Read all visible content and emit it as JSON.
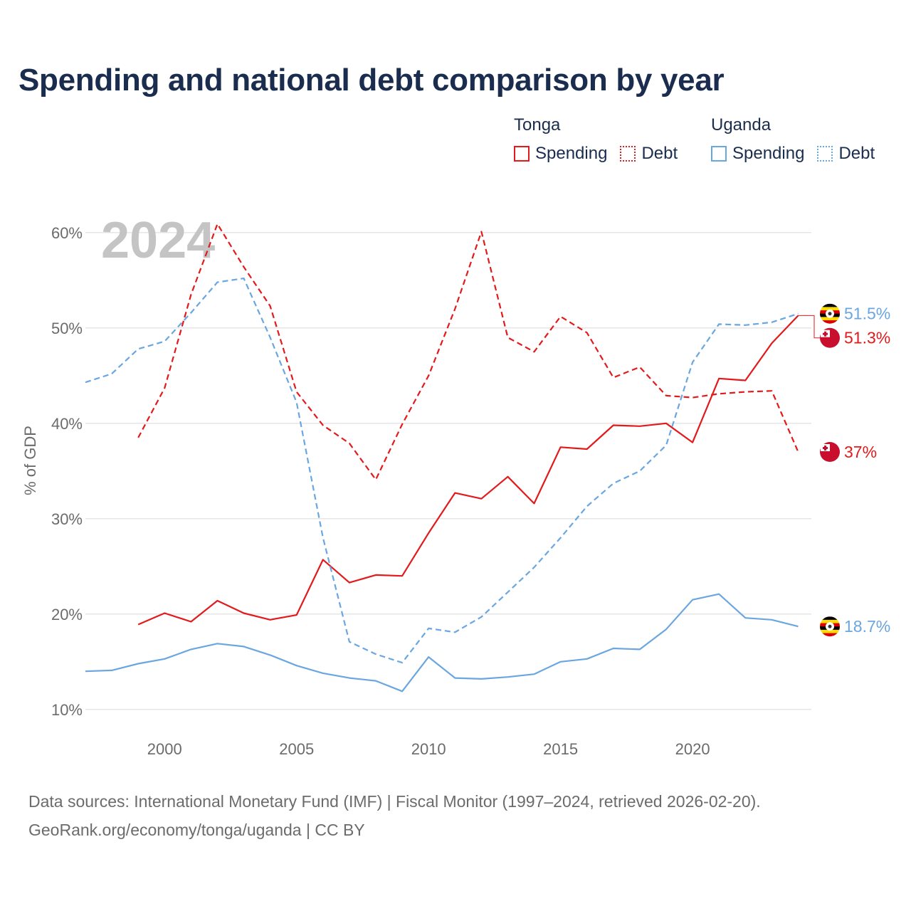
{
  "title": "Spending and national debt comparison by year",
  "legend": {
    "groups": [
      {
        "name": "Tonga",
        "color": "#e31a1c",
        "items": [
          {
            "label": "Spending",
            "style": "solid"
          },
          {
            "label": "Debt",
            "style": "dotted"
          }
        ]
      },
      {
        "name": "Uganda",
        "color": "#6aa6e0",
        "items": [
          {
            "label": "Spending",
            "style": "solid"
          },
          {
            "label": "Debt",
            "style": "dotted"
          }
        ]
      }
    ]
  },
  "footer": {
    "line1": "Data sources: International Monetary Fund (IMF) | Fiscal Monitor (1997–2024, retrieved 2026-02-20).",
    "line2": "GeoRank.org/economy/tonga/uganda | CC BY"
  },
  "chart_data": {
    "type": "line",
    "year_label": "2024",
    "ylabel": "% of GDP",
    "xlim": [
      1997,
      2024.5
    ],
    "ylim": [
      7,
      62
    ],
    "x_ticks": [
      2000,
      2005,
      2010,
      2015,
      2020
    ],
    "y_ticks": [
      10,
      20,
      30,
      40,
      50,
      60
    ],
    "y_tick_labels": [
      "10%",
      "20%",
      "30%",
      "40%",
      "50%",
      "60%"
    ],
    "grid": true,
    "series": [
      {
        "name": "Tonga Spending",
        "country": "Tonga",
        "metric": "Spending",
        "color": "#e31a1c",
        "dash": false,
        "end_label": "51.3%",
        "points": [
          [
            1999,
            18.9
          ],
          [
            2000,
            20.1
          ],
          [
            2001,
            19.2
          ],
          [
            2002,
            21.4
          ],
          [
            2003,
            20.1
          ],
          [
            2004,
            19.4
          ],
          [
            2005,
            19.9
          ],
          [
            2006,
            25.7
          ],
          [
            2007,
            23.3
          ],
          [
            2008,
            24.1
          ],
          [
            2009,
            24.0
          ],
          [
            2010,
            28.5
          ],
          [
            2011,
            32.7
          ],
          [
            2012,
            32.1
          ],
          [
            2013,
            34.4
          ],
          [
            2014,
            31.6
          ],
          [
            2015,
            37.5
          ],
          [
            2016,
            37.3
          ],
          [
            2017,
            39.8
          ],
          [
            2018,
            39.7
          ],
          [
            2019,
            40.0
          ],
          [
            2020,
            38.0
          ],
          [
            2021,
            44.7
          ],
          [
            2022,
            44.5
          ],
          [
            2023,
            48.4
          ],
          [
            2024,
            51.3
          ]
        ]
      },
      {
        "name": "Tonga Debt",
        "country": "Tonga",
        "metric": "Debt",
        "color": "#e31a1c",
        "dash": true,
        "end_label": "37%",
        "points": [
          [
            1999,
            38.5
          ],
          [
            2000,
            43.7
          ],
          [
            2001,
            53.5
          ],
          [
            2002,
            60.9
          ],
          [
            2003,
            56.4
          ],
          [
            2004,
            52.3
          ],
          [
            2005,
            43.3
          ],
          [
            2006,
            39.8
          ],
          [
            2007,
            37.9
          ],
          [
            2008,
            34.1
          ],
          [
            2009,
            39.9
          ],
          [
            2010,
            45.0
          ],
          [
            2011,
            52.0
          ],
          [
            2012,
            60.1
          ],
          [
            2013,
            49.0
          ],
          [
            2014,
            47.5
          ],
          [
            2015,
            51.2
          ],
          [
            2016,
            49.5
          ],
          [
            2017,
            44.8
          ],
          [
            2018,
            45.9
          ],
          [
            2019,
            42.9
          ],
          [
            2020,
            42.7
          ],
          [
            2021,
            43.1
          ],
          [
            2022,
            43.3
          ],
          [
            2023,
            43.4
          ],
          [
            2024,
            37.0
          ]
        ]
      },
      {
        "name": "Uganda Spending",
        "country": "Uganda",
        "metric": "Spending",
        "color": "#6aa6e0",
        "dash": false,
        "end_label": "18.7%",
        "points": [
          [
            1997,
            14.0
          ],
          [
            1998,
            14.1
          ],
          [
            1999,
            14.8
          ],
          [
            2000,
            15.3
          ],
          [
            2001,
            16.3
          ],
          [
            2002,
            16.9
          ],
          [
            2003,
            16.6
          ],
          [
            2004,
            15.7
          ],
          [
            2005,
            14.6
          ],
          [
            2006,
            13.8
          ],
          [
            2007,
            13.3
          ],
          [
            2008,
            13.0
          ],
          [
            2009,
            11.9
          ],
          [
            2010,
            15.5
          ],
          [
            2011,
            13.3
          ],
          [
            2012,
            13.2
          ],
          [
            2013,
            13.4
          ],
          [
            2014,
            13.7
          ],
          [
            2015,
            15.0
          ],
          [
            2016,
            15.3
          ],
          [
            2017,
            16.4
          ],
          [
            2018,
            16.3
          ],
          [
            2019,
            18.4
          ],
          [
            2020,
            21.5
          ],
          [
            2021,
            22.1
          ],
          [
            2022,
            19.6
          ],
          [
            2023,
            19.4
          ],
          [
            2024,
            18.7
          ]
        ]
      },
      {
        "name": "Uganda Debt",
        "country": "Uganda",
        "metric": "Debt",
        "color": "#6aa6e0",
        "dash": true,
        "end_label": "51.5%",
        "points": [
          [
            1997,
            44.3
          ],
          [
            1998,
            45.2
          ],
          [
            1999,
            47.8
          ],
          [
            2000,
            48.6
          ],
          [
            2001,
            51.6
          ],
          [
            2002,
            54.8
          ],
          [
            2003,
            55.2
          ],
          [
            2004,
            49.0
          ],
          [
            2005,
            42.2
          ],
          [
            2006,
            28.0
          ],
          [
            2007,
            17.1
          ],
          [
            2008,
            15.8
          ],
          [
            2009,
            14.9
          ],
          [
            2010,
            18.5
          ],
          [
            2011,
            18.1
          ],
          [
            2012,
            19.7
          ],
          [
            2013,
            22.3
          ],
          [
            2014,
            24.9
          ],
          [
            2015,
            28.0
          ],
          [
            2016,
            31.3
          ],
          [
            2017,
            33.7
          ],
          [
            2018,
            35.0
          ],
          [
            2019,
            37.7
          ],
          [
            2020,
            46.4
          ],
          [
            2021,
            50.4
          ],
          [
            2022,
            50.3
          ],
          [
            2023,
            50.6
          ],
          [
            2024,
            51.5
          ]
        ]
      }
    ]
  }
}
